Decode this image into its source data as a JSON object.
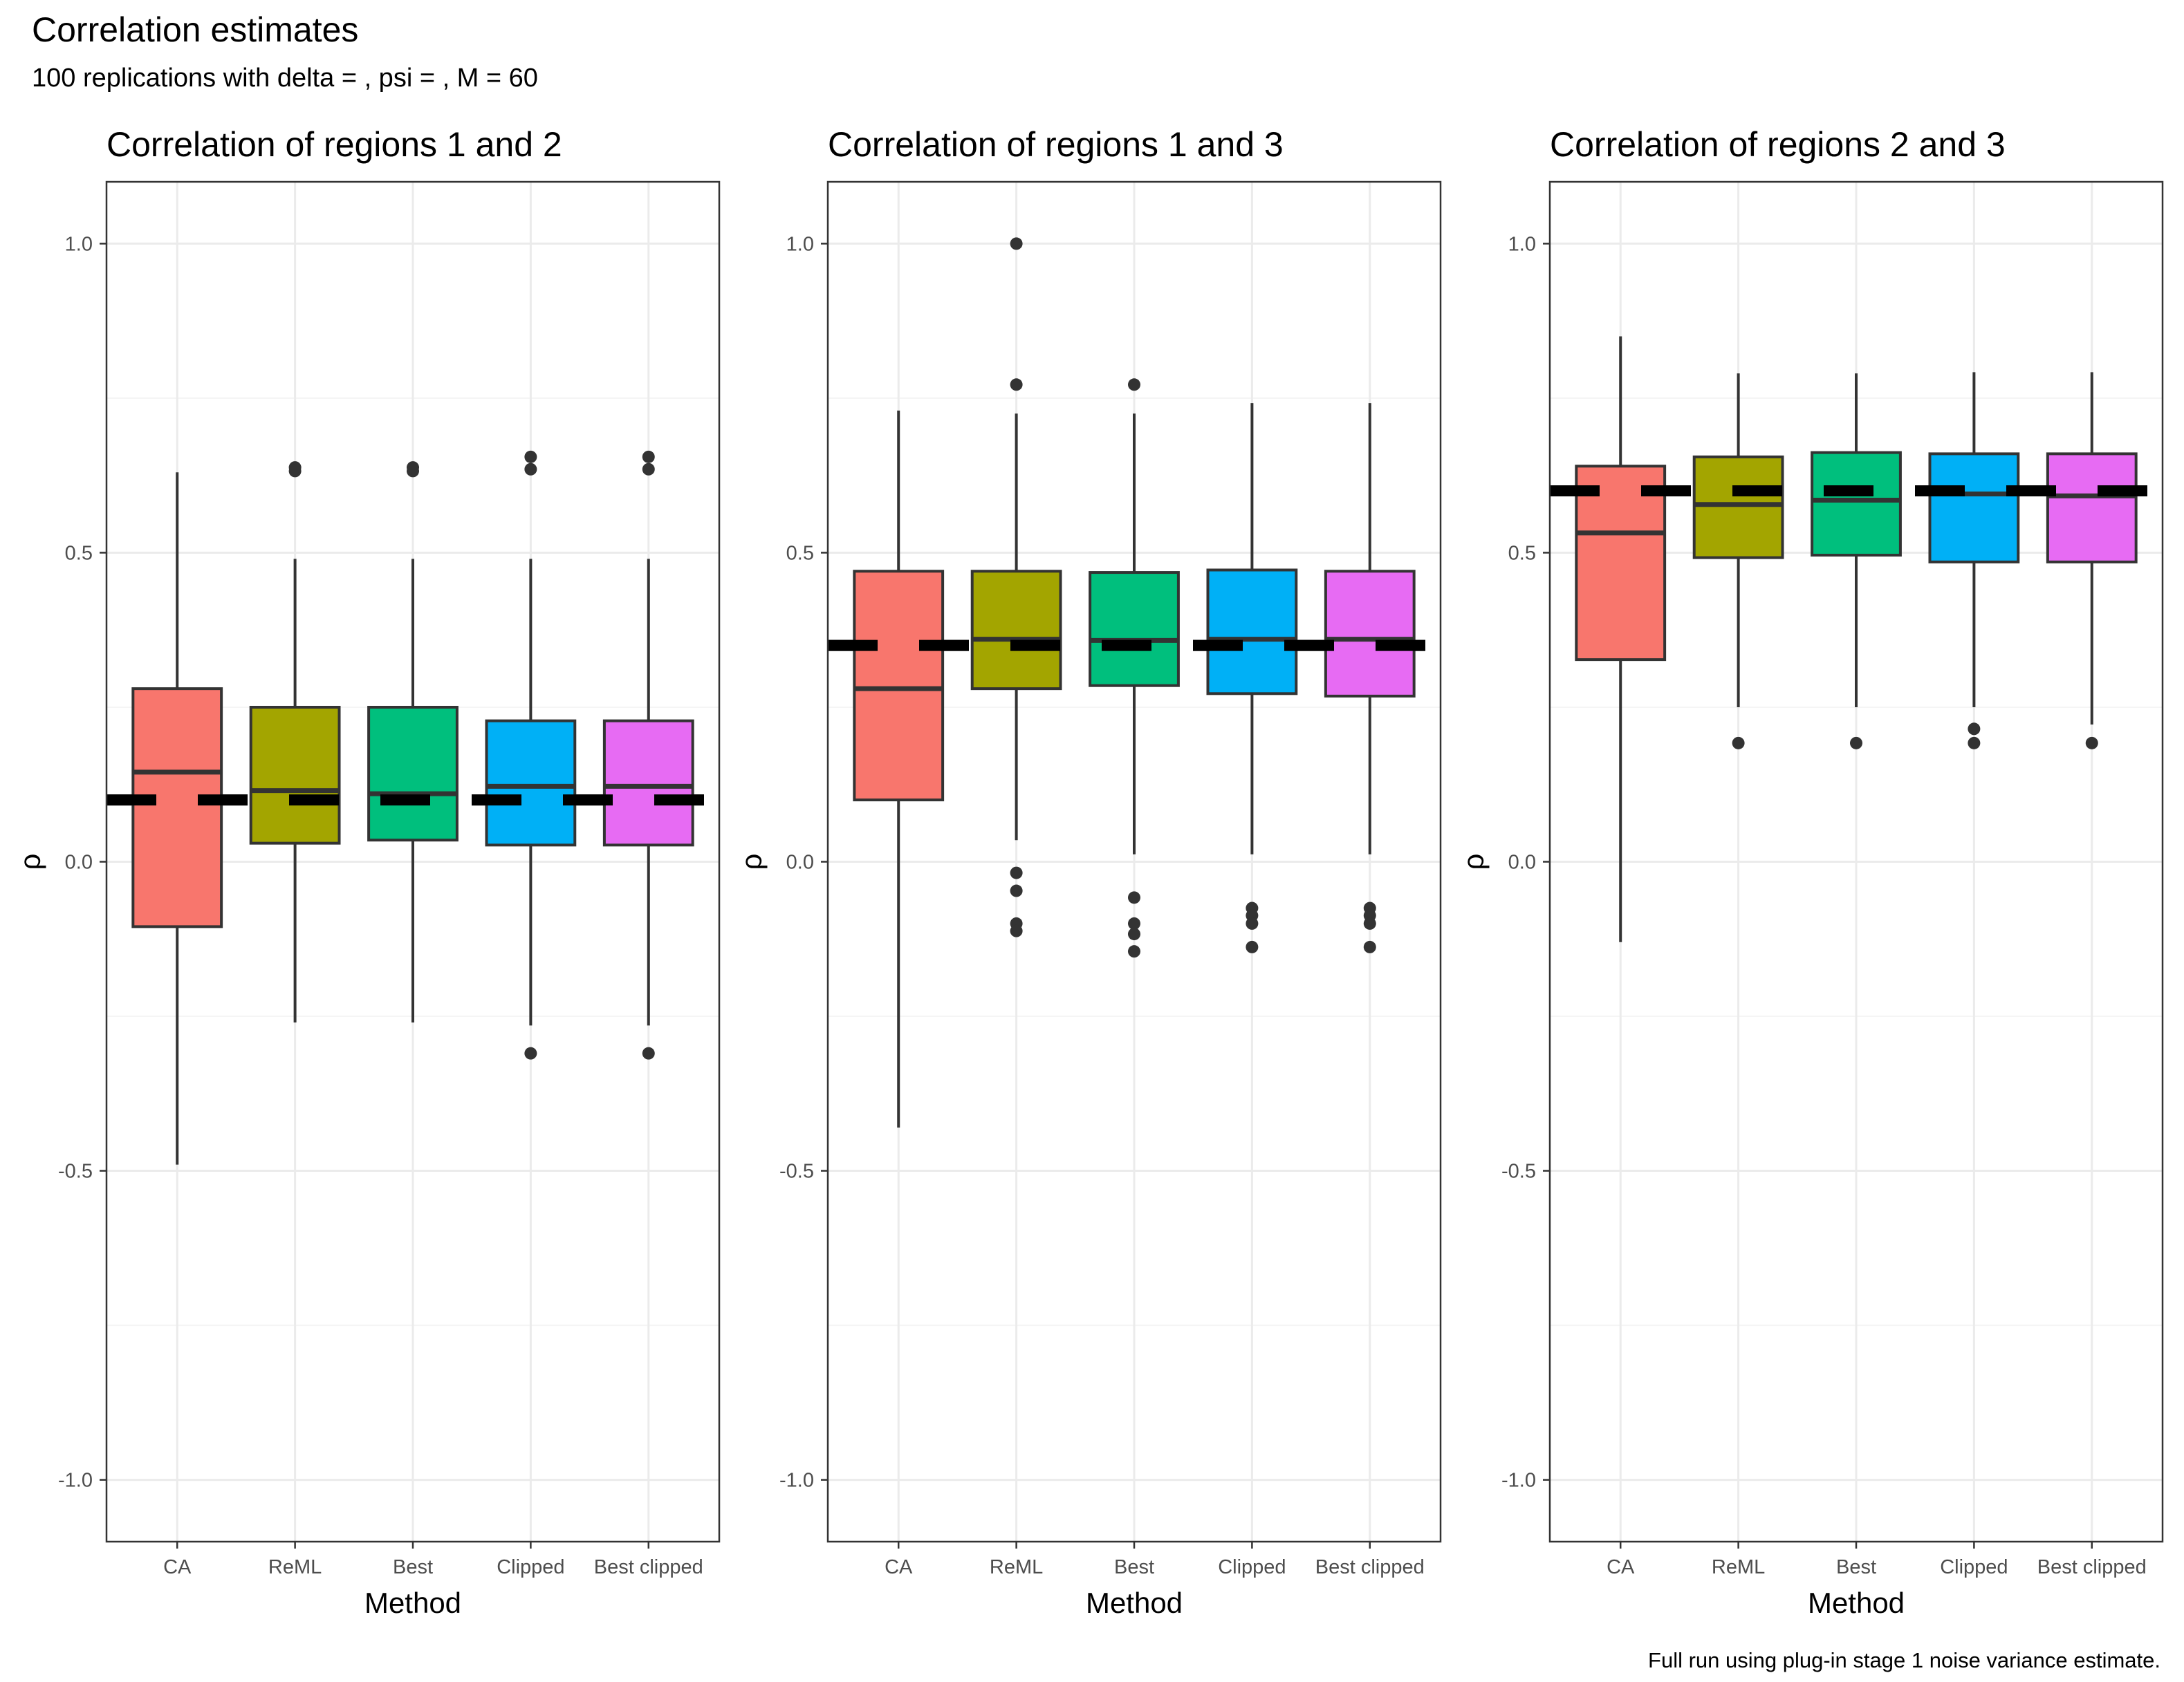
{
  "title": "Correlation estimates",
  "subtitle": "100 replications with delta = , psi = , M = 60",
  "caption": "Full run using plug-in stage 1 noise variance estimate.",
  "colors": {
    "CA": "#F8766D",
    "ReML": "#A3A500",
    "Best": "#00BF7D",
    "Clipped": "#00B0F6",
    "Best clipped": "#E76BF3",
    "panel_border": "#333333",
    "grid_major": "#ebebeb",
    "grid_minor": "#f5f5f5",
    "box_outline": "#333333",
    "true_value_marker": "#000000"
  },
  "chart_data": [
    {
      "type": "box",
      "title": "Correlation of regions 1 and 2",
      "xlabel": "Method",
      "ylabel": "ρ",
      "ylim": [
        -1.1,
        1.1
      ],
      "yticks": [
        -1.0,
        -0.5,
        0.0,
        0.5,
        1.0
      ],
      "ytick_labels": [
        "-1.0",
        "-0.5",
        "0.0",
        "0.5",
        "1.0"
      ],
      "grid": true,
      "categories": [
        "CA",
        "ReML",
        "Best",
        "Clipped",
        "Best clipped"
      ],
      "true_value": 0.1,
      "boxes": [
        {
          "method": "CA",
          "lower_whisker": -0.49,
          "q1": -0.105,
          "median": 0.145,
          "q3": 0.28,
          "upper_whisker": 0.63,
          "outliers": []
        },
        {
          "method": "ReML",
          "lower_whisker": -0.26,
          "q1": 0.03,
          "median": 0.115,
          "q3": 0.25,
          "upper_whisker": 0.49,
          "outliers": [
            0.632,
            0.638
          ]
        },
        {
          "method": "Best",
          "lower_whisker": -0.26,
          "q1": 0.035,
          "median": 0.11,
          "q3": 0.25,
          "upper_whisker": 0.49,
          "outliers": [
            0.632,
            0.638
          ]
        },
        {
          "method": "Clipped",
          "lower_whisker": -0.265,
          "q1": 0.027,
          "median": 0.122,
          "q3": 0.228,
          "upper_whisker": 0.49,
          "outliers": [
            0.635,
            0.655,
            -0.31
          ]
        },
        {
          "method": "Best clipped",
          "lower_whisker": -0.265,
          "q1": 0.027,
          "median": 0.122,
          "q3": 0.228,
          "upper_whisker": 0.49,
          "outliers": [
            0.635,
            0.655,
            -0.31
          ]
        }
      ]
    },
    {
      "type": "box",
      "title": "Correlation of regions 1 and 3",
      "xlabel": "Method",
      "ylabel": "ρ",
      "ylim": [
        -1.1,
        1.1
      ],
      "yticks": [
        -1.0,
        -0.5,
        0.0,
        0.5,
        1.0
      ],
      "ytick_labels": [
        "-1.0",
        "-0.5",
        "0.0",
        "0.5",
        "1.0"
      ],
      "grid": true,
      "categories": [
        "CA",
        "ReML",
        "Best",
        "Clipped",
        "Best clipped"
      ],
      "true_value": 0.35,
      "boxes": [
        {
          "method": "CA",
          "lower_whisker": -0.43,
          "q1": 0.1,
          "median": 0.28,
          "q3": 0.47,
          "upper_whisker": 0.73,
          "outliers": []
        },
        {
          "method": "ReML",
          "lower_whisker": 0.035,
          "q1": 0.28,
          "median": 0.36,
          "q3": 0.47,
          "upper_whisker": 0.725,
          "outliers": [
            1.0,
            0.772,
            -0.018,
            -0.047,
            -0.1,
            -0.112
          ]
        },
        {
          "method": "Best",
          "lower_whisker": 0.012,
          "q1": 0.285,
          "median": 0.358,
          "q3": 0.468,
          "upper_whisker": 0.725,
          "outliers": [
            0.772,
            -0.058,
            -0.1,
            -0.117,
            -0.145
          ]
        },
        {
          "method": "Clipped",
          "lower_whisker": 0.012,
          "q1": 0.272,
          "median": 0.36,
          "q3": 0.472,
          "upper_whisker": 0.742,
          "outliers": [
            -0.075,
            -0.087,
            -0.1,
            -0.138
          ]
        },
        {
          "method": "Best clipped",
          "lower_whisker": 0.012,
          "q1": 0.268,
          "median": 0.36,
          "q3": 0.47,
          "upper_whisker": 0.742,
          "outliers": [
            -0.075,
            -0.087,
            -0.1,
            -0.138
          ]
        }
      ]
    },
    {
      "type": "box",
      "title": "Correlation of regions 2 and 3",
      "xlabel": "Method",
      "ylabel": "ρ",
      "ylim": [
        -1.1,
        1.1
      ],
      "yticks": [
        -1.0,
        -0.5,
        0.0,
        0.5,
        1.0
      ],
      "ytick_labels": [
        "-1.0",
        "-0.5",
        "0.0",
        "0.5",
        "1.0"
      ],
      "grid": true,
      "categories": [
        "CA",
        "ReML",
        "Best",
        "Clipped",
        "Best clipped"
      ],
      "true_value": 0.6,
      "boxes": [
        {
          "method": "CA",
          "lower_whisker": -0.13,
          "q1": 0.327,
          "median": 0.532,
          "q3": 0.64,
          "upper_whisker": 0.85,
          "outliers": []
        },
        {
          "method": "ReML",
          "lower_whisker": 0.25,
          "q1": 0.492,
          "median": 0.578,
          "q3": 0.655,
          "upper_whisker": 0.79,
          "outliers": [
            0.192
          ]
        },
        {
          "method": "Best",
          "lower_whisker": 0.25,
          "q1": 0.496,
          "median": 0.585,
          "q3": 0.662,
          "upper_whisker": 0.79,
          "outliers": [
            0.192
          ]
        },
        {
          "method": "Clipped",
          "lower_whisker": 0.25,
          "q1": 0.485,
          "median": 0.595,
          "q3": 0.66,
          "upper_whisker": 0.792,
          "outliers": [
            0.215,
            0.192
          ]
        },
        {
          "method": "Best clipped",
          "lower_whisker": 0.222,
          "q1": 0.485,
          "median": 0.592,
          "q3": 0.66,
          "upper_whisker": 0.792,
          "outliers": [
            0.192
          ]
        }
      ]
    }
  ]
}
